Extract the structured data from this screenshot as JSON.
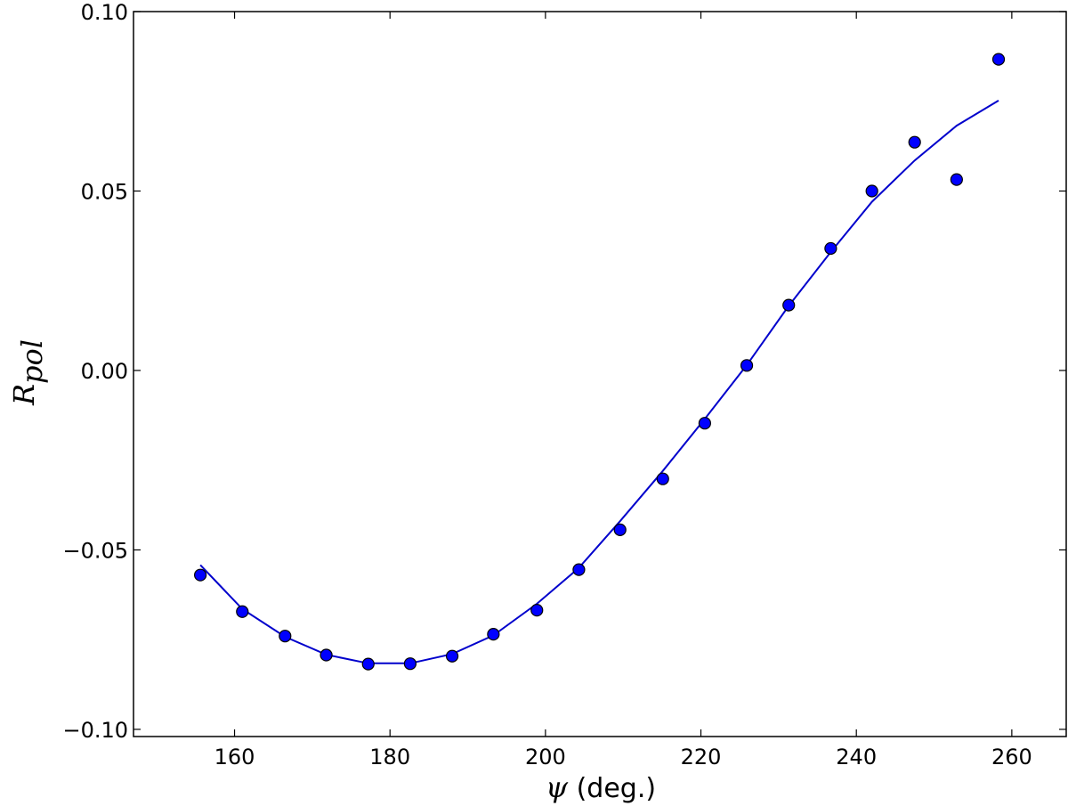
{
  "chart_data": {
    "type": "scatter",
    "title": "",
    "xlabel": {
      "symbol": "ψ",
      "unit": " (deg.)"
    },
    "ylabel": {
      "symbol": "R",
      "subscript": "pol"
    },
    "xlim": [
      147,
      267
    ],
    "ylim": [
      -0.102,
      0.1
    ],
    "x_ticks": [
      160,
      180,
      200,
      220,
      240,
      260
    ],
    "y_ticks": [
      -0.1,
      -0.05,
      0.0,
      0.05,
      0.1
    ],
    "x_tick_labels": [
      "160",
      "180",
      "200",
      "220",
      "240",
      "260"
    ],
    "y_tick_labels": [
      "−0.10",
      "−0.05",
      "0.00",
      "0.05",
      "0.10"
    ],
    "grid": false,
    "series": [
      {
        "kind": "points",
        "color": "#0000ff",
        "x": [
          155.6,
          161.0,
          166.5,
          171.8,
          177.2,
          182.6,
          188.0,
          193.3,
          198.9,
          204.3,
          209.6,
          215.1,
          220.5,
          225.9,
          231.3,
          236.7,
          242.0,
          247.5,
          252.9,
          258.3
        ],
        "y": [
          -0.057,
          -0.0672,
          -0.074,
          -0.0793,
          -0.0818,
          -0.0817,
          -0.0796,
          -0.0735,
          -0.0668,
          -0.0555,
          -0.0444,
          -0.0302,
          -0.0147,
          0.0014,
          0.0182,
          0.034,
          0.05,
          0.0636,
          0.0532,
          0.0867
        ]
      },
      {
        "kind": "line",
        "color": "#0000cc",
        "x": [
          155.6,
          161.0,
          166.5,
          171.8,
          177.2,
          182.6,
          188.0,
          193.3,
          198.9,
          204.3,
          209.6,
          215.1,
          220.5,
          225.9,
          231.3,
          236.7,
          242.0,
          247.5,
          252.9,
          258.3
        ],
        "y": [
          -0.0542,
          -0.0665,
          -0.0742,
          -0.0792,
          -0.0816,
          -0.0816,
          -0.079,
          -0.0738,
          -0.065,
          -0.055,
          -0.042,
          -0.028,
          -0.0135,
          0.0015,
          0.018,
          0.033,
          0.047,
          0.0585,
          0.0682,
          0.0752
        ]
      }
    ]
  }
}
